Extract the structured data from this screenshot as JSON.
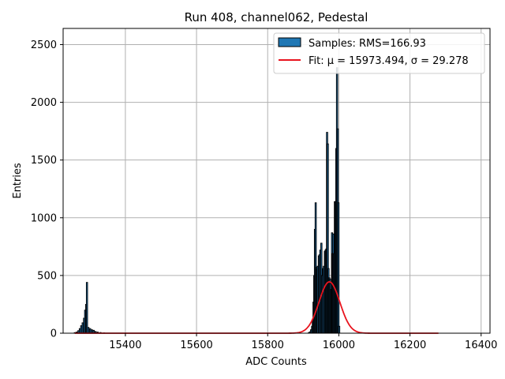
{
  "chart_data": {
    "type": "histogram",
    "title": "Run 408, channel062, Pedestal",
    "xlabel": "ADC Counts",
    "ylabel": "Entries",
    "xlim": [
      15225,
      16425
    ],
    "ylim": [
      0,
      2640
    ],
    "xticks": [
      15400,
      15600,
      15800,
      16000,
      16200,
      16400
    ],
    "yticks": [
      0,
      500,
      1000,
      1500,
      2000,
      2500
    ],
    "grid": true,
    "legend_position": "top-right",
    "colors": {
      "bar_fill": "#1f77b4",
      "bar_edge": "#000000",
      "fit_line": "#e8141e",
      "grid": "#b0b0b0"
    },
    "series": [
      {
        "name": "Samples: RMS=166.93",
        "kind": "histogram",
        "bins": [
          [
            15258,
            5
          ],
          [
            15263,
            10
          ],
          [
            15268,
            22
          ],
          [
            15272,
            40
          ],
          [
            15276,
            65
          ],
          [
            15280,
            90
          ],
          [
            15284,
            130
          ],
          [
            15287,
            200
          ],
          [
            15290,
            250
          ],
          [
            15292,
            440
          ],
          [
            15296,
            50
          ],
          [
            15301,
            40
          ],
          [
            15306,
            30
          ],
          [
            15311,
            25
          ],
          [
            15316,
            15
          ],
          [
            15322,
            10
          ],
          [
            15330,
            6
          ],
          [
            15340,
            3
          ],
          [
            15916,
            5
          ],
          [
            15919,
            12
          ],
          [
            15922,
            30
          ],
          [
            15925,
            60
          ],
          [
            15927,
            110
          ],
          [
            15929,
            270
          ],
          [
            15931,
            500
          ],
          [
            15933,
            900
          ],
          [
            15935,
            1130
          ],
          [
            15937,
            570
          ],
          [
            15939,
            560
          ],
          [
            15941,
            580
          ],
          [
            15944,
            670
          ],
          [
            15946,
            680
          ],
          [
            15948,
            720
          ],
          [
            15951,
            780
          ],
          [
            15953,
            500
          ],
          [
            15956,
            560
          ],
          [
            15958,
            580
          ],
          [
            15961,
            710
          ],
          [
            15963,
            720
          ],
          [
            15965,
            730
          ],
          [
            15967,
            1740
          ],
          [
            15969,
            1640
          ],
          [
            15971,
            560
          ],
          [
            15973,
            480
          ],
          [
            15975,
            470
          ],
          [
            15977,
            430
          ],
          [
            15979,
            380
          ],
          [
            15981,
            870
          ],
          [
            15983,
            690
          ],
          [
            15985,
            860
          ],
          [
            15987,
            690
          ],
          [
            15989,
            1140
          ],
          [
            15991,
            1140
          ],
          [
            15993,
            1600
          ],
          [
            15995,
            2300
          ],
          [
            15997,
            1770
          ],
          [
            15999,
            1130
          ],
          [
            16001,
            60
          ]
        ]
      },
      {
        "name": "Fit: μ = 15973.494, σ = 29.278",
        "kind": "gaussian",
        "mu": 15973.494,
        "sigma": 29.278,
        "amplitude": 445,
        "x_range": [
          15258,
          16280
        ]
      }
    ]
  }
}
